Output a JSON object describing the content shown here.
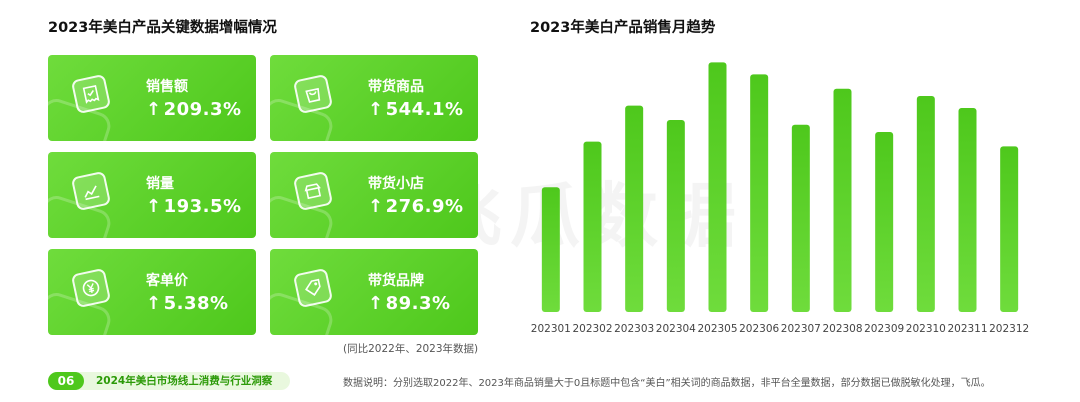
{
  "left_title": "2023年美白产品关键数据增幅情况",
  "cards": [
    {
      "label": "销售额",
      "value": "209.3%",
      "icon": "receipt-icon"
    },
    {
      "label": "带货商品",
      "value": "544.1%",
      "icon": "bag-icon"
    },
    {
      "label": "销量",
      "value": "193.5%",
      "icon": "chart-icon"
    },
    {
      "label": "带货小店",
      "value": "276.9%",
      "icon": "store-icon"
    },
    {
      "label": "客单价",
      "value": "5.38%",
      "icon": "yen-icon"
    },
    {
      "label": "带货品牌",
      "value": "89.3%",
      "icon": "tag-icon"
    }
  ],
  "arrow": "↑",
  "note": "(同比2022年、2023年数据)",
  "footer": {
    "page_number": "06",
    "report_title": "2024年美白市场线上消费与行业洞察",
    "description": "数据说明：分别选取2022年、2023年商品销量大于0且标题中包含“美白”相关词的商品数据，非平台全量数据，部分数据已做脱敏化处理，飞瓜。"
  },
  "watermark": "飞瓜数据",
  "colors": {
    "accent": "#4ec81c",
    "accent_light": "#6fdc3c"
  },
  "chart_data": {
    "type": "bar",
    "title": "2023年美白产品销售月趋势",
    "categories": [
      "202301",
      "202302",
      "202303",
      "202304",
      "202305",
      "202306",
      "202307",
      "202308",
      "202309",
      "202310",
      "202311",
      "202312"
    ],
    "values": [
      52,
      71,
      86,
      80,
      104,
      99,
      78,
      93,
      75,
      90,
      85,
      69
    ],
    "ylim": [
      0,
      110
    ],
    "grid": false,
    "y_axis_visible": false
  }
}
